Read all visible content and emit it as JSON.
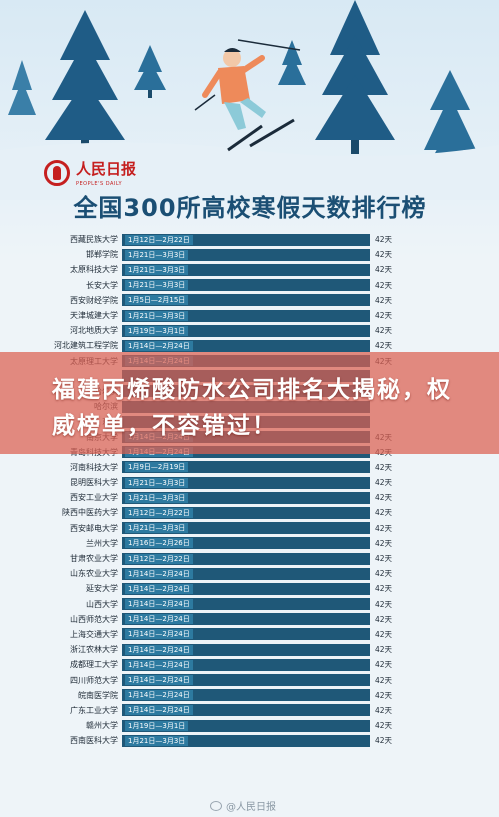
{
  "header": {
    "logo_text": "人民日报",
    "logo_sub": "PEOPLE'S DAILY",
    "title": "全国300所高校寒假天数排行榜"
  },
  "table": {
    "rows": [
      {
        "school": "西藏民族大学",
        "dates": "1月12日—2月22日",
        "days": "42天"
      },
      {
        "school": "邯郸学院",
        "dates": "1月21日—3月3日",
        "days": "42天"
      },
      {
        "school": "太原科技大学",
        "dates": "1月21日—3月3日",
        "days": "42天"
      },
      {
        "school": "长安大学",
        "dates": "1月21日—3月3日",
        "days": "42天"
      },
      {
        "school": "西安财经学院",
        "dates": "1月5日—2月15日",
        "days": "42天"
      },
      {
        "school": "天津城建大学",
        "dates": "1月21日—3月3日",
        "days": "42天"
      },
      {
        "school": "河北地质大学",
        "dates": "1月19日—3月1日",
        "days": "42天"
      },
      {
        "school": "河北建筑工程学院",
        "dates": "1月14日—2月24日",
        "days": "42天"
      },
      {
        "school": "太原理工大学",
        "dates": "1月14日—2月24日",
        "days": "42天"
      },
      {
        "school": "",
        "dates": "",
        "days": ""
      },
      {
        "school": "哈尔滨",
        "dates": "",
        "days": ""
      },
      {
        "school": "哈尔滨",
        "dates": "",
        "days": ""
      },
      {
        "school": "东北",
        "dates": "",
        "days": ""
      },
      {
        "school": "南京大学",
        "dates": "1月14日—2月24日",
        "days": "42天"
      },
      {
        "school": "青岛科技大学",
        "dates": "1月14日—2月24日",
        "days": "42天"
      },
      {
        "school": "河南科技大学",
        "dates": "1月9日—2月19日",
        "days": "42天"
      },
      {
        "school": "昆明医科大学",
        "dates": "1月21日—3月3日",
        "days": "42天"
      },
      {
        "school": "西安工业大学",
        "dates": "1月21日—3月3日",
        "days": "42天"
      },
      {
        "school": "陕西中医药大学",
        "dates": "1月12日—2月22日",
        "days": "42天"
      },
      {
        "school": "西安邮电大学",
        "dates": "1月21日—3月3日",
        "days": "42天"
      },
      {
        "school": "兰州大学",
        "dates": "1月16日—2月26日",
        "days": "42天"
      },
      {
        "school": "甘肃农业大学",
        "dates": "1月12日—2月22日",
        "days": "42天"
      },
      {
        "school": "山东农业大学",
        "dates": "1月14日—2月24日",
        "days": "42天"
      },
      {
        "school": "延安大学",
        "dates": "1月14日—2月24日",
        "days": "42天"
      },
      {
        "school": "山西大学",
        "dates": "1月14日—2月24日",
        "days": "42天"
      },
      {
        "school": "山西师范大学",
        "dates": "1月14日—2月24日",
        "days": "42天"
      },
      {
        "school": "上海交通大学",
        "dates": "1月14日—2月24日",
        "days": "42天"
      },
      {
        "school": "浙江农林大学",
        "dates": "1月14日—2月24日",
        "days": "42天"
      },
      {
        "school": "成都理工大学",
        "dates": "1月14日—2月24日",
        "days": "42天"
      },
      {
        "school": "四川师范大学",
        "dates": "1月14日—2月24日",
        "days": "42天"
      },
      {
        "school": "皖南医学院",
        "dates": "1月14日—2月24日",
        "days": "42天"
      },
      {
        "school": "广东工业大学",
        "dates": "1月14日—2月24日",
        "days": "42天"
      },
      {
        "school": "赣州大学",
        "dates": "1月19日—3月1日",
        "days": "42天"
      },
      {
        "school": "西南医科大学",
        "dates": "1月21日—3月3日",
        "days": "42天"
      }
    ]
  },
  "banner": {
    "text": "福建丙烯酸防水公司排名大揭秘，权威榜单，不容错过！"
  },
  "watermark": {
    "text": "@人民日报"
  },
  "colors": {
    "title": "#1b4f74",
    "bar": "#1f5878",
    "banner": "#dc6050",
    "logo": "#c51f1f"
  }
}
